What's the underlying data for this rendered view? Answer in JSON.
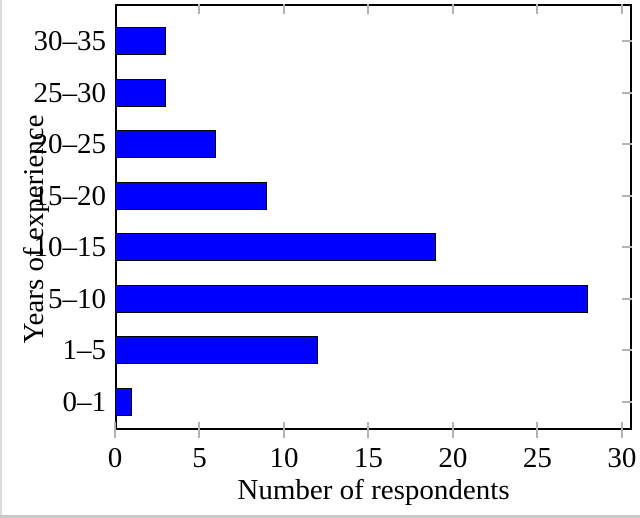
{
  "chart_data": {
    "type": "bar",
    "orientation": "horizontal",
    "title": "",
    "xlabel": "Number of respondents",
    "ylabel": "Years of experience",
    "categories": [
      "30–35",
      "25–30",
      "20–25",
      "15–20",
      "10–15",
      "5–10",
      "1–5",
      "0–1"
    ],
    "category_order": "top-to-bottom",
    "values": [
      3,
      3,
      6,
      9,
      19,
      28,
      12,
      1
    ],
    "xticks": [
      0,
      5,
      10,
      15,
      20,
      25,
      30
    ],
    "xlim": [
      0,
      30.6
    ],
    "grid": false,
    "legend": "none",
    "bar_color": "#0000ff",
    "bar_border_color": "#000000",
    "axis_color": "#000000",
    "tick_color": "#b3b3b3"
  }
}
